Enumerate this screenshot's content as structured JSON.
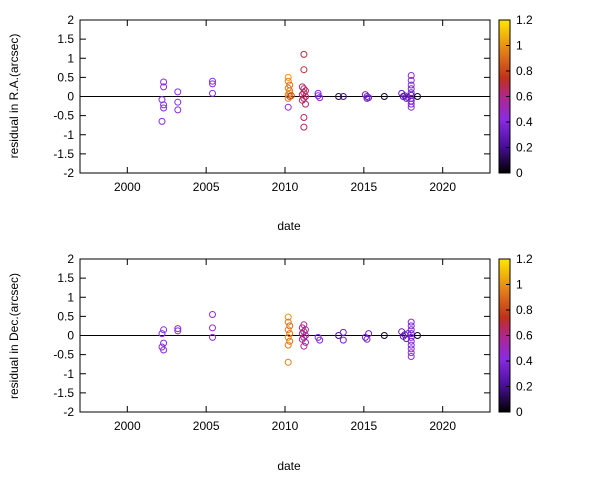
{
  "chart_data": [
    {
      "type": "scatter",
      "xlabel": "date",
      "ylabel": "residual in R.A.(arcsec)",
      "xlim": [
        1997,
        2023
      ],
      "ylim": [
        -2,
        2
      ],
      "xticks": [
        2000,
        2005,
        2010,
        2015,
        2020
      ],
      "yticks": [
        -2,
        -1.5,
        -1,
        -0.5,
        0,
        0.5,
        1,
        1.5,
        2
      ],
      "ytick_labels": [
        "-2",
        "-1.5",
        "-1",
        "-0.5",
        "0",
        "0.5",
        "1",
        "1.5",
        "2"
      ],
      "zero_line": true,
      "colorbar": {
        "range": [
          0,
          1.2
        ],
        "ticks": [
          0,
          0.2,
          0.4,
          0.6,
          0.8,
          1,
          1.2
        ],
        "tick_labels": [
          "0",
          "0.2",
          "0.4",
          "0.6",
          "0.8",
          "1",
          "1.2"
        ]
      },
      "points": [
        {
          "x": 2002.3,
          "y": 0.38,
          "c": 0.42
        },
        {
          "x": 2002.3,
          "y": 0.25,
          "c": 0.42
        },
        {
          "x": 2002.2,
          "y": -0.08,
          "c": 0.42
        },
        {
          "x": 2002.3,
          "y": -0.22,
          "c": 0.42
        },
        {
          "x": 2002.3,
          "y": -0.3,
          "c": 0.42
        },
        {
          "x": 2002.2,
          "y": -0.65,
          "c": 0.42
        },
        {
          "x": 2003.2,
          "y": 0.12,
          "c": 0.42
        },
        {
          "x": 2003.2,
          "y": -0.15,
          "c": 0.42
        },
        {
          "x": 2003.2,
          "y": -0.35,
          "c": 0.42
        },
        {
          "x": 2005.4,
          "y": 0.4,
          "c": 0.42
        },
        {
          "x": 2005.4,
          "y": 0.33,
          "c": 0.42
        },
        {
          "x": 2005.4,
          "y": 0.08,
          "c": 0.42
        },
        {
          "x": 2010.2,
          "y": 0.5,
          "c": 1.0
        },
        {
          "x": 2010.2,
          "y": 0.4,
          "c": 0.95
        },
        {
          "x": 2010.3,
          "y": 0.3,
          "c": 0.9
        },
        {
          "x": 2010.2,
          "y": 0.22,
          "c": 0.95
        },
        {
          "x": 2010.3,
          "y": 0.15,
          "c": 0.9
        },
        {
          "x": 2010.2,
          "y": 0.05,
          "c": 0.95
        },
        {
          "x": 2010.3,
          "y": 0.0,
          "c": 0.85
        },
        {
          "x": 2010.2,
          "y": -0.05,
          "c": 0.95
        },
        {
          "x": 2010.3,
          "y": 0.08,
          "c": 1.0
        },
        {
          "x": 2010.2,
          "y": -0.28,
          "c": 0.45
        },
        {
          "x": 2010.4,
          "y": 0.02,
          "c": 0.8
        },
        {
          "x": 2011.2,
          "y": 1.1,
          "c": 0.7
        },
        {
          "x": 2011.2,
          "y": 0.7,
          "c": 0.7
        },
        {
          "x": 2011.1,
          "y": 0.25,
          "c": 0.65
        },
        {
          "x": 2011.2,
          "y": 0.2,
          "c": 0.65
        },
        {
          "x": 2011.3,
          "y": 0.15,
          "c": 0.65
        },
        {
          "x": 2011.2,
          "y": 0.1,
          "c": 0.65
        },
        {
          "x": 2011.1,
          "y": 0.05,
          "c": 0.65
        },
        {
          "x": 2011.3,
          "y": 0.0,
          "c": 0.65
        },
        {
          "x": 2011.2,
          "y": -0.05,
          "c": 0.65
        },
        {
          "x": 2011.1,
          "y": -0.1,
          "c": 0.65
        },
        {
          "x": 2011.3,
          "y": -0.2,
          "c": 0.65
        },
        {
          "x": 2011.2,
          "y": -0.55,
          "c": 0.65
        },
        {
          "x": 2011.2,
          "y": -0.8,
          "c": 0.65
        },
        {
          "x": 2012.1,
          "y": 0.08,
          "c": 0.4
        },
        {
          "x": 2012.1,
          "y": 0.02,
          "c": 0.4
        },
        {
          "x": 2012.2,
          "y": -0.03,
          "c": 0.4
        },
        {
          "x": 2013.4,
          "y": 0.0,
          "c": 0.1
        },
        {
          "x": 2013.7,
          "y": 0.0,
          "c": 0.2
        },
        {
          "x": 2015.1,
          "y": 0.05,
          "c": 0.35
        },
        {
          "x": 2015.2,
          "y": 0.0,
          "c": 0.35
        },
        {
          "x": 2015.3,
          "y": -0.03,
          "c": 0.35
        },
        {
          "x": 2015.2,
          "y": -0.05,
          "c": 0.35
        },
        {
          "x": 2016.3,
          "y": 0.0,
          "c": 0.05
        },
        {
          "x": 2017.4,
          "y": 0.08,
          "c": 0.3
        },
        {
          "x": 2017.6,
          "y": 0.02,
          "c": 0.3
        },
        {
          "x": 2017.7,
          "y": -0.05,
          "c": 0.3
        },
        {
          "x": 2017.5,
          "y": 0.0,
          "c": 0.25
        },
        {
          "x": 2017.8,
          "y": -0.02,
          "c": 0.3
        },
        {
          "x": 2018.0,
          "y": 0.55,
          "c": 0.45
        },
        {
          "x": 2018.0,
          "y": 0.42,
          "c": 0.4
        },
        {
          "x": 2018.0,
          "y": 0.3,
          "c": 0.4
        },
        {
          "x": 2018.0,
          "y": 0.2,
          "c": 0.35
        },
        {
          "x": 2018.0,
          "y": 0.1,
          "c": 0.35
        },
        {
          "x": 2018.0,
          "y": 0.03,
          "c": 0.3
        },
        {
          "x": 2018.0,
          "y": -0.05,
          "c": 0.35
        },
        {
          "x": 2018.0,
          "y": -0.12,
          "c": 0.35
        },
        {
          "x": 2018.0,
          "y": -0.2,
          "c": 0.4
        },
        {
          "x": 2018.0,
          "y": -0.28,
          "c": 0.4
        },
        {
          "x": 2018.4,
          "y": 0.0,
          "c": 0.05
        }
      ]
    },
    {
      "type": "scatter",
      "xlabel": "date",
      "ylabel": "residual in Dec.(arcsec)",
      "xlim": [
        1997,
        2023
      ],
      "ylim": [
        -2,
        2
      ],
      "xticks": [
        2000,
        2005,
        2010,
        2015,
        2020
      ],
      "yticks": [
        -2,
        -1.5,
        -1,
        -0.5,
        0,
        0.5,
        1,
        1.5,
        2
      ],
      "ytick_labels": [
        "-2",
        "-1.5",
        "-1",
        "-0.5",
        "0",
        "0.5",
        "1",
        "1.5",
        "2"
      ],
      "zero_line": true,
      "colorbar": {
        "range": [
          0,
          1.2
        ],
        "ticks": [
          0,
          0.2,
          0.4,
          0.6,
          0.8,
          1,
          1.2
        ],
        "tick_labels": [
          "0",
          "0.2",
          "0.4",
          "0.6",
          "0.8",
          "1",
          "1.2"
        ]
      },
      "points": [
        {
          "x": 2002.3,
          "y": 0.15,
          "c": 0.42
        },
        {
          "x": 2002.2,
          "y": 0.05,
          "c": 0.42
        },
        {
          "x": 2002.3,
          "y": -0.2,
          "c": 0.42
        },
        {
          "x": 2002.2,
          "y": -0.3,
          "c": 0.42
        },
        {
          "x": 2002.3,
          "y": -0.38,
          "c": 0.42
        },
        {
          "x": 2003.2,
          "y": 0.18,
          "c": 0.42
        },
        {
          "x": 2003.2,
          "y": 0.12,
          "c": 0.42
        },
        {
          "x": 2005.4,
          "y": 0.55,
          "c": 0.42
        },
        {
          "x": 2005.4,
          "y": 0.2,
          "c": 0.42
        },
        {
          "x": 2005.4,
          "y": -0.05,
          "c": 0.42
        },
        {
          "x": 2010.2,
          "y": 0.48,
          "c": 1.0
        },
        {
          "x": 2010.2,
          "y": 0.35,
          "c": 0.95
        },
        {
          "x": 2010.3,
          "y": 0.25,
          "c": 0.9
        },
        {
          "x": 2010.2,
          "y": 0.15,
          "c": 0.95
        },
        {
          "x": 2010.3,
          "y": 0.05,
          "c": 0.9
        },
        {
          "x": 2010.2,
          "y": -0.05,
          "c": 1.0
        },
        {
          "x": 2010.3,
          "y": -0.15,
          "c": 0.9
        },
        {
          "x": 2010.2,
          "y": -0.25,
          "c": 0.95
        },
        {
          "x": 2010.2,
          "y": -0.7,
          "c": 0.95
        },
        {
          "x": 2011.2,
          "y": 0.28,
          "c": 0.6
        },
        {
          "x": 2011.1,
          "y": 0.2,
          "c": 0.6
        },
        {
          "x": 2011.3,
          "y": 0.15,
          "c": 0.55
        },
        {
          "x": 2011.2,
          "y": 0.1,
          "c": 0.6
        },
        {
          "x": 2011.1,
          "y": 0.05,
          "c": 0.6
        },
        {
          "x": 2011.3,
          "y": 0.0,
          "c": 0.55
        },
        {
          "x": 2011.2,
          "y": -0.05,
          "c": 0.6
        },
        {
          "x": 2011.1,
          "y": -0.1,
          "c": 0.6
        },
        {
          "x": 2011.3,
          "y": -0.18,
          "c": 0.55
        },
        {
          "x": 2011.2,
          "y": -0.28,
          "c": 0.6
        },
        {
          "x": 2012.1,
          "y": -0.05,
          "c": 0.4
        },
        {
          "x": 2012.2,
          "y": -0.12,
          "c": 0.4
        },
        {
          "x": 2013.4,
          "y": 0.0,
          "c": 0.2
        },
        {
          "x": 2013.7,
          "y": 0.08,
          "c": 0.35
        },
        {
          "x": 2013.7,
          "y": -0.12,
          "c": 0.35
        },
        {
          "x": 2015.1,
          "y": -0.05,
          "c": 0.35
        },
        {
          "x": 2015.2,
          "y": -0.1,
          "c": 0.35
        },
        {
          "x": 2015.3,
          "y": 0.05,
          "c": 0.35
        },
        {
          "x": 2016.3,
          "y": 0.0,
          "c": 0.05
        },
        {
          "x": 2017.4,
          "y": 0.1,
          "c": 0.3
        },
        {
          "x": 2017.6,
          "y": 0.02,
          "c": 0.3
        },
        {
          "x": 2017.7,
          "y": -0.08,
          "c": 0.3
        },
        {
          "x": 2017.5,
          "y": -0.02,
          "c": 0.25
        },
        {
          "x": 2017.8,
          "y": 0.05,
          "c": 0.3
        },
        {
          "x": 2018.0,
          "y": 0.35,
          "c": 0.4
        },
        {
          "x": 2018.0,
          "y": 0.25,
          "c": 0.4
        },
        {
          "x": 2018.0,
          "y": 0.15,
          "c": 0.35
        },
        {
          "x": 2018.0,
          "y": 0.05,
          "c": 0.35
        },
        {
          "x": 2018.0,
          "y": -0.05,
          "c": 0.35
        },
        {
          "x": 2018.0,
          "y": -0.15,
          "c": 0.35
        },
        {
          "x": 2018.0,
          "y": -0.25,
          "c": 0.4
        },
        {
          "x": 2018.0,
          "y": -0.35,
          "c": 0.4
        },
        {
          "x": 2018.0,
          "y": -0.45,
          "c": 0.45
        },
        {
          "x": 2018.0,
          "y": -0.55,
          "c": 0.45
        },
        {
          "x": 2018.4,
          "y": 0.0,
          "c": 0.05
        }
      ]
    }
  ]
}
